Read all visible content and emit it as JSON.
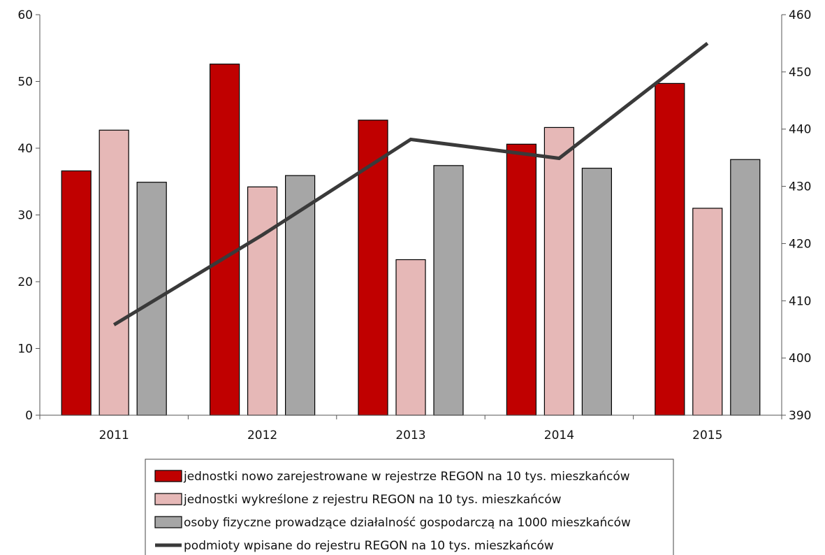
{
  "chart_data": {
    "type": "bar",
    "title": "",
    "xlabel": "",
    "ylabel": "",
    "categories": [
      "2011",
      "2012",
      "2013",
      "2014",
      "2015"
    ],
    "ylim": [
      0,
      60
    ],
    "y_ticks": [
      0,
      10,
      20,
      30,
      40,
      50,
      60
    ],
    "y2lim": [
      390,
      460
    ],
    "y2_ticks": [
      390,
      400,
      410,
      420,
      430,
      440,
      450,
      460
    ],
    "grid": false,
    "legend_position": "bottom",
    "series": [
      {
        "name": "jednostki nowo zarejestrowane w rejestrze REGON na 10 tys. mieszkańców",
        "type": "bar",
        "axis": "left",
        "color": "#c00000",
        "values": [
          36.6,
          52.6,
          44.2,
          40.6,
          49.7
        ]
      },
      {
        "name": "jednostki wykreślone z rejestru REGON na 10 tys. mieszkańców",
        "type": "bar",
        "axis": "left",
        "color": "#e6b8b7",
        "values": [
          42.7,
          34.2,
          23.3,
          43.1,
          31.0
        ]
      },
      {
        "name": "osoby fizyczne prowadzące działalność gospodarczą na 1000 mieszkańców",
        "type": "bar",
        "axis": "left",
        "color": "#a6a6a6",
        "values": [
          34.9,
          35.9,
          37.4,
          37.0,
          38.3
        ]
      },
      {
        "name": "podmioty wpisane do rejestru REGON na 10 tys. mieszkańców",
        "type": "line",
        "axis": "right",
        "color": "#3a3a3a",
        "values": [
          405.8,
          421.5,
          438.2,
          434.9,
          455.0
        ]
      }
    ]
  }
}
